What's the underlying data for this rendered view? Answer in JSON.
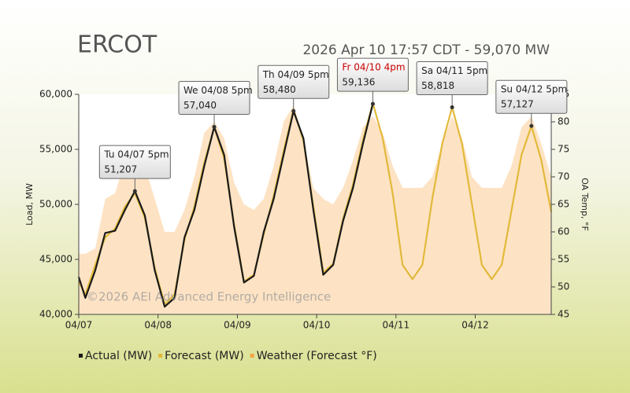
{
  "chart_data": {
    "type": "line",
    "title": "ERCOT",
    "subtitle": "2026 Apr 10 17:57 CDT - 59,070 MW",
    "watermark": "©2026 AEI Advanced Energy Intelligence",
    "y_label": "Load, MW",
    "y2_label": "OA Temp, °F",
    "x": [
      0,
      2,
      5,
      8,
      11,
      14,
      17,
      20,
      23,
      26,
      29,
      32,
      35,
      38,
      41,
      44,
      47,
      50,
      53,
      56,
      59,
      62,
      65,
      68,
      71,
      74,
      77,
      80,
      83,
      86,
      89,
      92,
      95,
      98,
      101,
      104,
      107,
      110,
      113,
      116,
      119,
      122,
      125,
      128,
      131,
      134,
      137,
      140,
      143
    ],
    "xlim": [
      0,
      143
    ],
    "xticks": [
      {
        "value": 0,
        "label": "04/07"
      },
      {
        "value": 24,
        "label": "04/08"
      },
      {
        "value": 48,
        "label": "04/09"
      },
      {
        "value": 72,
        "label": "04/10"
      },
      {
        "value": 96,
        "label": "04/11"
      },
      {
        "value": 120,
        "label": "04/12"
      }
    ],
    "ylim": [
      40000,
      60000
    ],
    "yticks": [
      {
        "value": 40000,
        "label": "40,000"
      },
      {
        "value": 45000,
        "label": "45,000"
      },
      {
        "value": 50000,
        "label": "50,000"
      },
      {
        "value": 55000,
        "label": "55,000"
      },
      {
        "value": 60000,
        "label": "60,000"
      }
    ],
    "y2lim": [
      45,
      85
    ],
    "y2ticks": [
      45,
      50,
      55,
      60,
      65,
      70,
      75,
      80,
      85
    ],
    "series": [
      {
        "name": "Weather (Forecast °F)",
        "color": "#fde3c4",
        "legend_color": "#f2a444",
        "axis": "y2",
        "kind": "area",
        "values": [
          56,
          56,
          57,
          66,
          67,
          73,
          74,
          72,
          66,
          60,
          60,
          64,
          70,
          78,
          80,
          77,
          69,
          65,
          64,
          66,
          72,
          80,
          83,
          77,
          68,
          66,
          65,
          68,
          73,
          79,
          81,
          78,
          72,
          68,
          68,
          68,
          70,
          76,
          81,
          77,
          70,
          68,
          68,
          68,
          72,
          79,
          81,
          76,
          70
        ]
      },
      {
        "name": "Forecast (MW)",
        "color": "#e2b93b",
        "kind": "line",
        "values": [
          43000,
          41800,
          44500,
          47000,
          47800,
          49800,
          51000,
          48800,
          44200,
          40900,
          41800,
          46800,
          49800,
          53800,
          57000,
          54200,
          48200,
          43000,
          43600,
          47300,
          50800,
          54800,
          58600,
          55800,
          49800,
          43800,
          44600,
          48700,
          51800,
          55800,
          59200,
          56000,
          51000,
          44500,
          43200,
          44500,
          50500,
          55500,
          58818,
          55500,
          50000,
          44500,
          43200,
          44500,
          49500,
          54500,
          57127,
          54000,
          49300
        ]
      },
      {
        "name": "Actual (MW)",
        "color": "#1a1a1a",
        "kind": "line",
        "values": [
          43400,
          41500,
          44000,
          47400,
          47600,
          49500,
          51207,
          49000,
          44000,
          40700,
          41500,
          47000,
          49500,
          53500,
          57040,
          54500,
          48000,
          42900,
          43500,
          47500,
          50500,
          54500,
          58480,
          56000,
          49500,
          43600,
          44500,
          48500,
          51500,
          55500,
          59136,
          null,
          null,
          null,
          null,
          null,
          null,
          null,
          null,
          null,
          null,
          null,
          null,
          null,
          null,
          null,
          null,
          null,
          null
        ]
      }
    ],
    "callouts": [
      {
        "x": 17,
        "value": 51207,
        "label": "Tu 04/07 5pm",
        "value_label": "51,207",
        "color": "#222222"
      },
      {
        "x": 41,
        "value": 57040,
        "label": "We 04/08 5pm",
        "value_label": "57,040",
        "color": "#222222"
      },
      {
        "x": 65,
        "value": 58480,
        "label": "Th 04/09 5pm",
        "value_label": "58,480",
        "color": "#222222"
      },
      {
        "x": 89,
        "value": 59136,
        "label": "Fr 04/10 4pm",
        "value_label": "59,136",
        "color": "#cc0000"
      },
      {
        "x": 113,
        "value": 58818,
        "label": "Sa 04/11 5pm",
        "value_label": "58,818",
        "color": "#222222"
      },
      {
        "x": 137,
        "value": 57127,
        "label": "Su 04/12 5pm",
        "value_label": "57,127",
        "color": "#222222"
      }
    ]
  }
}
